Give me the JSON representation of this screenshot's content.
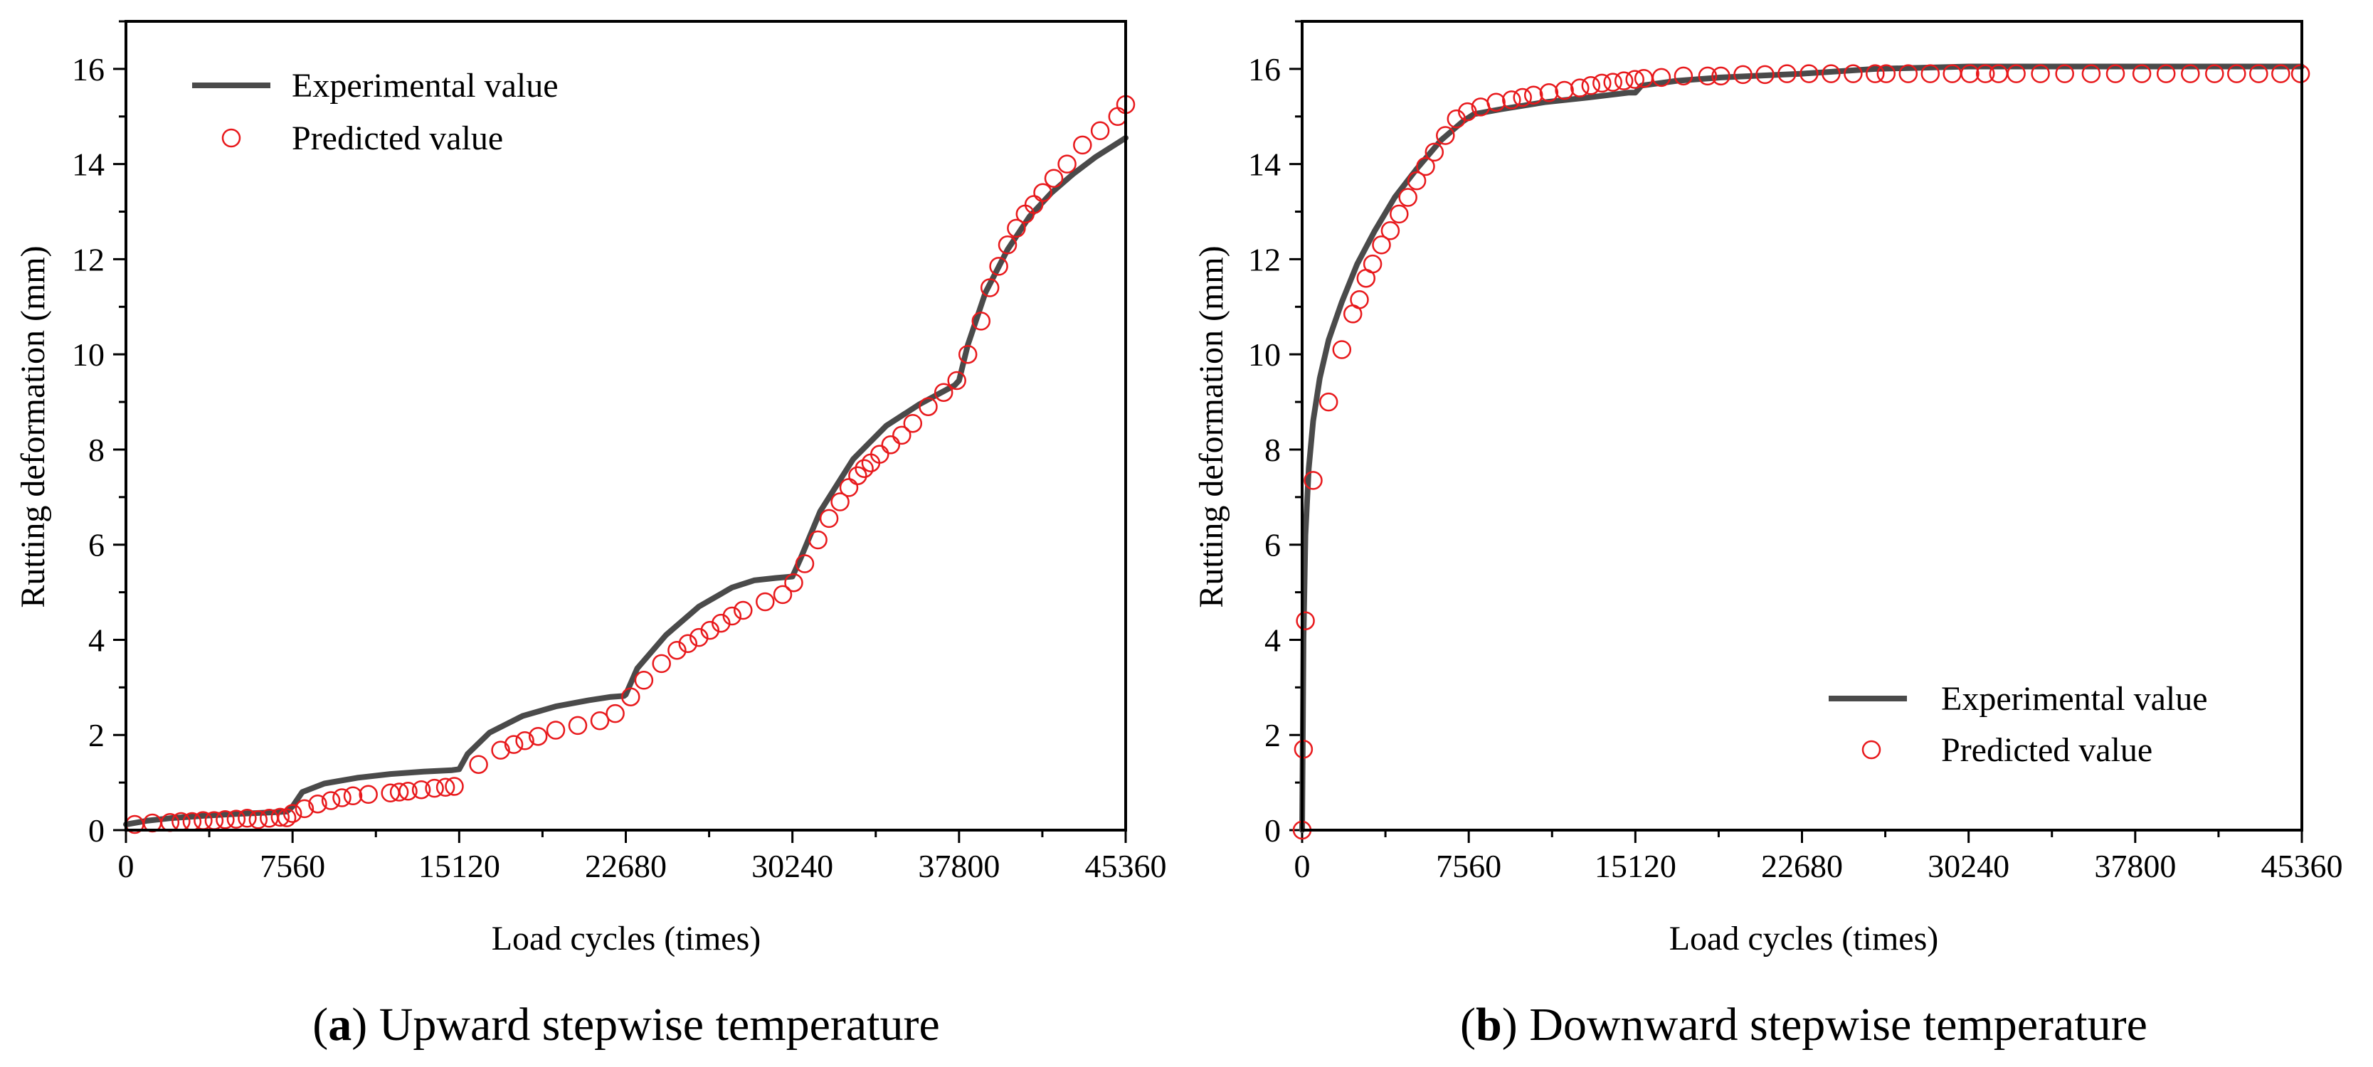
{
  "figure": {
    "colors": {
      "experimental": "#4a4a4a",
      "predicted": "#e8191c",
      "axis": "#000000"
    }
  },
  "chart_data": [
    {
      "type": "line+scatter",
      "caption_letter": "a",
      "caption_text": "Upward stepwise temperature",
      "xlabel": "Load cycles (times)",
      "ylabel": "Rutting deformation (mm)",
      "xlim": [
        0,
        45360
      ],
      "ylim": [
        0,
        17
      ],
      "xticks": [
        0,
        7560,
        15120,
        22680,
        30240,
        37800,
        45360
      ],
      "xtick_labels": [
        "0",
        "7560",
        "15120",
        "22680",
        "30240",
        "37800",
        "45360"
      ],
      "yticks": [
        0,
        2,
        4,
        6,
        8,
        10,
        12,
        14,
        16
      ],
      "ytick_labels": [
        "0",
        "2",
        "4",
        "6",
        "8",
        "10",
        "12",
        "14",
        "16"
      ],
      "legend": {
        "position": "top-left",
        "line_label": "Experimental value",
        "marker_label": "Predicted value"
      },
      "experimental": {
        "name": "Experimental value",
        "x": [
          0,
          1000,
          2000,
          3500,
          5000,
          6500,
          7300,
          7560,
          8000,
          9000,
          10500,
          12000,
          13500,
          14800,
          15120,
          15500,
          16500,
          18000,
          19500,
          21000,
          22000,
          22600,
          22680,
          23200,
          24500,
          26000,
          27500,
          28500,
          29500,
          30240,
          30600,
          31500,
          33000,
          34500,
          36000,
          37000,
          37600,
          37800,
          38200,
          39000,
          40000,
          41000,
          42000,
          43000,
          44000,
          45360
        ],
        "y": [
          0.12,
          0.2,
          0.25,
          0.3,
          0.34,
          0.37,
          0.39,
          0.5,
          0.8,
          0.98,
          1.1,
          1.18,
          1.23,
          1.26,
          1.28,
          1.6,
          2.05,
          2.4,
          2.6,
          2.73,
          2.8,
          2.82,
          2.85,
          3.4,
          4.1,
          4.7,
          5.1,
          5.25,
          5.3,
          5.33,
          5.7,
          6.7,
          7.8,
          8.5,
          8.95,
          9.2,
          9.35,
          9.45,
          10.2,
          11.3,
          12.2,
          12.9,
          13.4,
          13.8,
          14.15,
          14.55
        ]
      },
      "predicted": {
        "name": "Predicted value",
        "x": [
          400,
          1200,
          2000,
          2500,
          3000,
          3500,
          4000,
          4500,
          5000,
          5500,
          6000,
          6500,
          7000,
          7300,
          7560,
          8100,
          8700,
          9300,
          9800,
          10300,
          11000,
          12000,
          12400,
          12800,
          13400,
          14000,
          14500,
          14900,
          16000,
          17000,
          17600,
          18100,
          18700,
          19500,
          20500,
          21500,
          22200,
          22900,
          23500,
          24300,
          25000,
          25500,
          26000,
          26500,
          27000,
          27500,
          28000,
          29000,
          29800,
          30300,
          30800,
          31400,
          31900,
          32400,
          32800,
          33200,
          33500,
          33800,
          34200,
          34700,
          35200,
          35700,
          36400,
          37100,
          37700,
          38200,
          38800,
          39200,
          39600,
          40000,
          40400,
          40800,
          41200,
          41600,
          42100,
          42700,
          43400,
          44200,
          45000,
          45360
        ],
        "y": [
          0.12,
          0.15,
          0.16,
          0.18,
          0.18,
          0.2,
          0.2,
          0.22,
          0.23,
          0.25,
          0.22,
          0.25,
          0.27,
          0.26,
          0.35,
          0.45,
          0.55,
          0.62,
          0.68,
          0.72,
          0.75,
          0.78,
          0.8,
          0.82,
          0.85,
          0.88,
          0.9,
          0.92,
          1.38,
          1.68,
          1.8,
          1.88,
          1.97,
          2.1,
          2.2,
          2.3,
          2.45,
          2.8,
          3.15,
          3.5,
          3.78,
          3.92,
          4.05,
          4.2,
          4.35,
          4.5,
          4.62,
          4.8,
          4.95,
          5.2,
          5.6,
          6.1,
          6.55,
          6.9,
          7.2,
          7.45,
          7.6,
          7.72,
          7.9,
          8.1,
          8.3,
          8.55,
          8.9,
          9.2,
          9.45,
          10.0,
          10.7,
          11.4,
          11.85,
          12.3,
          12.65,
          12.95,
          13.15,
          13.4,
          13.7,
          14.0,
          14.4,
          14.7,
          15.0,
          15.25
        ]
      }
    },
    {
      "type": "line+scatter",
      "caption_letter": "b",
      "caption_text": "Downward stepwise temperature",
      "xlabel": "Load cycles (times)",
      "ylabel": "Rutting deformation (mm)",
      "xlim": [
        0,
        45360
      ],
      "ylim": [
        0,
        17
      ],
      "xticks": [
        0,
        7560,
        15120,
        22680,
        30240,
        37800,
        45360
      ],
      "xtick_labels": [
        "0",
        "7560",
        "15120",
        "22680",
        "30240",
        "37800",
        "45360"
      ],
      "yticks": [
        0,
        2,
        4,
        6,
        8,
        10,
        12,
        14,
        16
      ],
      "ytick_labels": [
        "0",
        "2",
        "4",
        "6",
        "8",
        "10",
        "12",
        "14",
        "16"
      ],
      "legend": {
        "position": "bottom-right",
        "line_label": "Experimental  value",
        "marker_label": "Predicted value"
      },
      "experimental": {
        "name": "Experimental value",
        "x": [
          0,
          60,
          150,
          300,
          500,
          800,
          1200,
          1800,
          2500,
          3300,
          4200,
          5200,
          6300,
          7300,
          7800,
          9000,
          11000,
          13000,
          14800,
          15120,
          15400,
          17000,
          19000,
          22680,
          26000,
          30240,
          37800,
          45360
        ],
        "y": [
          0,
          4.0,
          6.2,
          7.6,
          8.6,
          9.5,
          10.3,
          11.1,
          11.9,
          12.6,
          13.3,
          13.9,
          14.5,
          14.9,
          15.05,
          15.15,
          15.3,
          15.4,
          15.5,
          15.5,
          15.65,
          15.75,
          15.82,
          15.9,
          16.0,
          16.05,
          16.05,
          16.05
        ]
      },
      "predicted": {
        "name": "Predicted value",
        "x": [
          0,
          60,
          150,
          500,
          1200,
          1800,
          2300,
          2600,
          2900,
          3200,
          3600,
          4000,
          4400,
          4800,
          5200,
          5600,
          6000,
          6500,
          7000,
          7500,
          8100,
          8800,
          9500,
          10000,
          10500,
          11200,
          11900,
          12600,
          13100,
          13600,
          14100,
          14600,
          15100,
          15500,
          16300,
          17300,
          18400,
          19000,
          20000,
          21000,
          22000,
          23000,
          24000,
          25000,
          26000,
          26500,
          27500,
          28500,
          29500,
          30300,
          31000,
          31600,
          32400,
          33500,
          34600,
          35800,
          36900,
          38100,
          39200,
          40300,
          41400,
          42400,
          43400,
          44400,
          45300
        ],
        "y": [
          0,
          1.7,
          4.4,
          7.35,
          9.0,
          10.1,
          10.85,
          11.15,
          11.6,
          11.9,
          12.3,
          12.6,
          12.95,
          13.3,
          13.65,
          13.95,
          14.25,
          14.6,
          14.95,
          15.1,
          15.2,
          15.3,
          15.35,
          15.4,
          15.45,
          15.5,
          15.55,
          15.6,
          15.65,
          15.7,
          15.72,
          15.75,
          15.78,
          15.8,
          15.82,
          15.85,
          15.85,
          15.85,
          15.88,
          15.88,
          15.9,
          15.9,
          15.9,
          15.9,
          15.9,
          15.9,
          15.9,
          15.9,
          15.9,
          15.9,
          15.9,
          15.9,
          15.9,
          15.9,
          15.9,
          15.9,
          15.9,
          15.9,
          15.9,
          15.9,
          15.9,
          15.9,
          15.9,
          15.9,
          15.9
        ]
      }
    }
  ]
}
